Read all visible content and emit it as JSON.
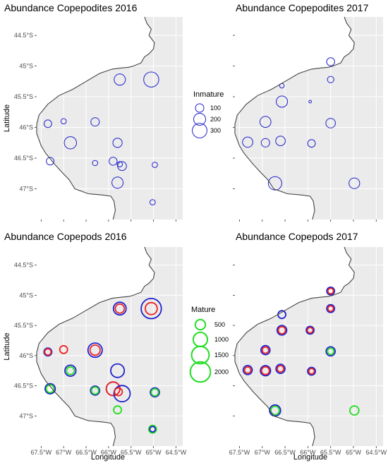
{
  "chart_data": [
    {
      "type": "scatter",
      "title": "Abundance Copepodites 2016",
      "ylabel": "Latitude",
      "xlabel": "",
      "xlim": [
        -67.6,
        -64.35
      ],
      "ylim": [
        -47.5,
        -44.2
      ],
      "xticks": [
        -67.5,
        -67.0,
        -66.5,
        -66.0,
        -65.5,
        -65.0,
        -64.5
      ],
      "yticks": [
        -44.5,
        -45.0,
        -45.5,
        -46.0,
        -46.5,
        -47.0
      ],
      "ytick_labels": [
        "44.5°S",
        "45°S",
        "45.5°S",
        "46°S",
        "46.5°S",
        "47°S"
      ],
      "xtick_labels": [],
      "series": [
        {
          "size_variable": "Inmature",
          "color": "#2222cc",
          "points": [
            {
              "x": -65.75,
              "y": -45.22,
              "v": 180
            },
            {
              "x": -65.05,
              "y": -45.22,
              "v": 320
            },
            {
              "x": -67.35,
              "y": -45.94,
              "v": 80
            },
            {
              "x": -67.0,
              "y": -45.9,
              "v": 40
            },
            {
              "x": -66.3,
              "y": -45.91,
              "v": 100
            },
            {
              "x": -66.85,
              "y": -46.25,
              "v": 210
            },
            {
              "x": -65.8,
              "y": -46.25,
              "v": 120
            },
            {
              "x": -67.3,
              "y": -46.55,
              "v": 80
            },
            {
              "x": -66.3,
              "y": -46.58,
              "v": 40
            },
            {
              "x": -65.9,
              "y": -46.55,
              "v": 90
            },
            {
              "x": -65.75,
              "y": -46.6,
              "v": 40
            },
            {
              "x": -65.7,
              "y": -46.63,
              "v": 110
            },
            {
              "x": -64.97,
              "y": -46.61,
              "v": 40
            },
            {
              "x": -65.8,
              "y": -46.9,
              "v": 180
            },
            {
              "x": -65.02,
              "y": -47.22,
              "v": 40
            }
          ]
        }
      ]
    },
    {
      "type": "scatter",
      "title": "Abundance Copepodites 2017",
      "ylabel": "",
      "xlabel": "",
      "xlim": [
        -67.6,
        -64.35
      ],
      "ylim": [
        -47.5,
        -44.2
      ],
      "xticks": [
        -67.5,
        -67.0,
        -66.5,
        -66.0,
        -65.5,
        -65.0,
        -64.5
      ],
      "yticks": [
        -44.5,
        -45.0,
        -45.5,
        -46.0,
        -46.5,
        -47.0
      ],
      "ytick_labels": [],
      "xtick_labels": [],
      "series": [
        {
          "size_variable": "Inmature",
          "color": "#2222cc",
          "points": [
            {
              "x": -65.5,
              "y": -44.93,
              "v": 90
            },
            {
              "x": -65.5,
              "y": -45.22,
              "v": 60
            },
            {
              "x": -66.57,
              "y": -45.32,
              "v": 30
            },
            {
              "x": -66.57,
              "y": -45.58,
              "v": 180
            },
            {
              "x": -65.95,
              "y": -45.58,
              "v": 10
            },
            {
              "x": -66.93,
              "y": -45.91,
              "v": 170
            },
            {
              "x": -65.5,
              "y": -45.93,
              "v": 130
            },
            {
              "x": -67.32,
              "y": -46.24,
              "v": 150
            },
            {
              "x": -66.93,
              "y": -46.25,
              "v": 100
            },
            {
              "x": -66.6,
              "y": -46.22,
              "v": 130
            },
            {
              "x": -65.92,
              "y": -46.26,
              "v": 80
            },
            {
              "x": -66.72,
              "y": -46.91,
              "v": 250
            },
            {
              "x": -64.98,
              "y": -46.91,
              "v": 160
            }
          ]
        }
      ]
    },
    {
      "type": "scatter",
      "title": "Abundance Copepods 2016",
      "ylabel": "Latitude",
      "xlabel": "Longitude",
      "xlim": [
        -67.6,
        -64.35
      ],
      "ylim": [
        -47.5,
        -44.2
      ],
      "xticks": [
        -67.5,
        -67.0,
        -66.5,
        -66.0,
        -65.5,
        -65.0,
        -64.5
      ],
      "yticks": [
        -44.5,
        -45.0,
        -45.5,
        -46.0,
        -46.5,
        -47.0
      ],
      "ytick_labels": [
        "44.5°S",
        "45°S",
        "45.5°S",
        "46°S",
        "46.5°S",
        "47°S"
      ],
      "xtick_labels": [
        "67.5°W",
        "67°W",
        "66.5°W",
        "66°W",
        "65.5°W",
        "65°W",
        "64.5°W"
      ],
      "series": [
        {
          "size_variable": "Mature",
          "points": [
            {
              "x": -65.75,
              "y": -45.22,
              "v": 800,
              "color": "#2222cc"
            },
            {
              "x": -65.75,
              "y": -45.22,
              "v": 400,
              "color": "#ee2222"
            },
            {
              "x": -65.05,
              "y": -45.22,
              "v": 2000,
              "color": "#2222cc"
            },
            {
              "x": -65.05,
              "y": -45.22,
              "v": 700,
              "color": "#ee2222"
            },
            {
              "x": -67.35,
              "y": -45.94,
              "v": 300,
              "color": "#2222cc"
            },
            {
              "x": -67.35,
              "y": -45.94,
              "v": 200,
              "color": "#ee2222"
            },
            {
              "x": -67.0,
              "y": -45.9,
              "v": 300,
              "color": "#ee2222"
            },
            {
              "x": -66.3,
              "y": -45.91,
              "v": 1000,
              "color": "#2222cc"
            },
            {
              "x": -66.3,
              "y": -45.91,
              "v": 500,
              "color": "#ee2222"
            },
            {
              "x": -66.85,
              "y": -46.25,
              "v": 600,
              "color": "#2222cc"
            },
            {
              "x": -66.85,
              "y": -46.25,
              "v": 300,
              "color": "#22dd22"
            },
            {
              "x": -65.8,
              "y": -46.25,
              "v": 900,
              "color": "#2222cc"
            },
            {
              "x": -67.3,
              "y": -46.55,
              "v": 500,
              "color": "#2222cc"
            },
            {
              "x": -67.3,
              "y": -46.55,
              "v": 300,
              "color": "#22dd22"
            },
            {
              "x": -66.3,
              "y": -46.58,
              "v": 400,
              "color": "#2222cc"
            },
            {
              "x": -66.3,
              "y": -46.58,
              "v": 250,
              "color": "#22dd22"
            },
            {
              "x": -65.9,
              "y": -46.55,
              "v": 900,
              "color": "#2222cc"
            },
            {
              "x": -65.9,
              "y": -46.55,
              "v": 900,
              "color": "#ee2222"
            },
            {
              "x": -65.7,
              "y": -46.63,
              "v": 1300,
              "color": "#2222cc"
            },
            {
              "x": -65.78,
              "y": -46.6,
              "v": 300,
              "color": "#ee2222"
            },
            {
              "x": -64.97,
              "y": -46.61,
              "v": 400,
              "color": "#2222cc"
            },
            {
              "x": -64.97,
              "y": -46.61,
              "v": 250,
              "color": "#22dd22"
            },
            {
              "x": -65.8,
              "y": -46.9,
              "v": 300,
              "color": "#22dd22"
            },
            {
              "x": -65.02,
              "y": -47.22,
              "v": 300,
              "color": "#22dd22"
            },
            {
              "x": -65.02,
              "y": -47.22,
              "v": 150,
              "color": "#2222cc"
            }
          ]
        }
      ]
    },
    {
      "type": "scatter",
      "title": "Abundance Copepods 2017",
      "ylabel": "",
      "xlabel": "Longitude",
      "xlim": [
        -67.6,
        -64.35
      ],
      "ylim": [
        -47.5,
        -44.2
      ],
      "xticks": [
        -67.5,
        -67.0,
        -66.5,
        -66.0,
        -65.5,
        -65.0,
        -64.5
      ],
      "yticks": [
        -44.5,
        -45.0,
        -45.5,
        -46.0,
        -46.5,
        -47.0
      ],
      "ytick_labels": [],
      "xtick_labels": [
        "67.5°W",
        "67°W",
        "66.5°W",
        "66°W",
        "65.5°W",
        "65°W",
        "64.5°W"
      ],
      "series": [
        {
          "size_variable": "Mature",
          "points": [
            {
              "x": -65.5,
              "y": -44.93,
              "v": 300,
              "color": "#2222cc"
            },
            {
              "x": -65.5,
              "y": -44.93,
              "v": 150,
              "color": "#ee2222"
            },
            {
              "x": -65.5,
              "y": -45.22,
              "v": 300,
              "color": "#2222cc"
            },
            {
              "x": -65.5,
              "y": -45.22,
              "v": 150,
              "color": "#ee2222"
            },
            {
              "x": -66.57,
              "y": -45.32,
              "v": 300,
              "color": "#2222cc"
            },
            {
              "x": -66.57,
              "y": -45.58,
              "v": 450,
              "color": "#2222cc"
            },
            {
              "x": -66.57,
              "y": -45.58,
              "v": 250,
              "color": "#ee2222"
            },
            {
              "x": -65.95,
              "y": -45.58,
              "v": 300,
              "color": "#2222cc"
            },
            {
              "x": -65.95,
              "y": -45.58,
              "v": 150,
              "color": "#ee2222"
            },
            {
              "x": -66.93,
              "y": -45.91,
              "v": 400,
              "color": "#2222cc"
            },
            {
              "x": -66.93,
              "y": -45.91,
              "v": 200,
              "color": "#ee2222"
            },
            {
              "x": -65.5,
              "y": -45.93,
              "v": 400,
              "color": "#2222cc"
            },
            {
              "x": -65.5,
              "y": -45.93,
              "v": 200,
              "color": "#22dd22"
            },
            {
              "x": -67.32,
              "y": -46.24,
              "v": 400,
              "color": "#2222cc"
            },
            {
              "x": -67.32,
              "y": -46.24,
              "v": 200,
              "color": "#ee2222"
            },
            {
              "x": -66.93,
              "y": -46.25,
              "v": 500,
              "color": "#2222cc"
            },
            {
              "x": -66.93,
              "y": -46.25,
              "v": 300,
              "color": "#ee2222"
            },
            {
              "x": -66.6,
              "y": -46.22,
              "v": 400,
              "color": "#2222cc"
            },
            {
              "x": -66.6,
              "y": -46.22,
              "v": 200,
              "color": "#ee2222"
            },
            {
              "x": -65.92,
              "y": -46.26,
              "v": 300,
              "color": "#2222cc"
            },
            {
              "x": -65.92,
              "y": -46.26,
              "v": 150,
              "color": "#ee2222"
            },
            {
              "x": -66.72,
              "y": -46.91,
              "v": 600,
              "color": "#2222cc"
            },
            {
              "x": -66.72,
              "y": -46.91,
              "v": 350,
              "color": "#22dd22"
            },
            {
              "x": -64.98,
              "y": -46.91,
              "v": 400,
              "color": "#22dd22"
            }
          ]
        }
      ]
    }
  ],
  "legends": {
    "inmature": {
      "title": "Inmature",
      "color": "#2222cc",
      "entries": [
        {
          "label": "100",
          "v": 100
        },
        {
          "label": "200",
          "v": 200
        },
        {
          "label": "300",
          "v": 300
        }
      ]
    },
    "mature": {
      "title": "Mature",
      "color": "#22dd22",
      "entries": [
        {
          "label": "500",
          "v": 500
        },
        {
          "label": "1000",
          "v": 1000
        },
        {
          "label": "1500",
          "v": 1500
        },
        {
          "label": "2000",
          "v": 2000
        }
      ]
    }
  },
  "colors": {
    "panel_bg": "#ebebeb",
    "grid": "#ffffff",
    "land": "#ffffff",
    "coast": "#444444",
    "inmature": "#2222cc",
    "mature_green": "#22dd22",
    "mature_blue": "#2222cc",
    "mature_red": "#ee2222"
  }
}
